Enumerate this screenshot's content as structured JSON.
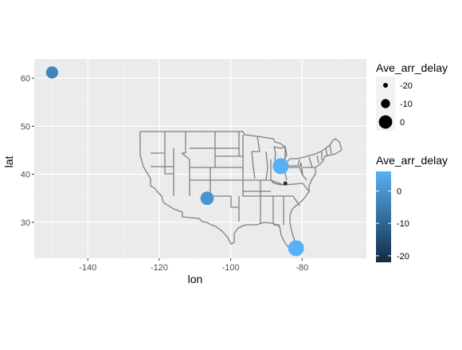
{
  "chart_data": {
    "type": "scatter",
    "xlabel": "lon",
    "ylabel": "lat",
    "xlim": [
      -155,
      -62
    ],
    "ylim": [
      22.5,
      64
    ],
    "x_ticks": [
      {
        "value": -140,
        "label": "-140"
      },
      {
        "value": -120,
        "label": "-120"
      },
      {
        "value": -100,
        "label": "-100"
      },
      {
        "value": -80,
        "label": "-80"
      }
    ],
    "y_ticks": [
      {
        "value": 30,
        "label": "30"
      },
      {
        "value": 40,
        "label": "40"
      },
      {
        "value": 50,
        "label": "50"
      },
      {
        "value": 60,
        "label": "60"
      }
    ],
    "grid": true,
    "background": "#EBEBEB",
    "basemap": "US state outlines (contiguous 48 states)",
    "points": [
      {
        "lon": -150.0,
        "lat": 61.2,
        "Ave_arr_delay": -3
      },
      {
        "lon": -106.6,
        "lat": 35.0,
        "Ave_arr_delay": 0
      },
      {
        "lon": -86.0,
        "lat": 41.7,
        "Ave_arr_delay": 6
      },
      {
        "lon": -84.7,
        "lat": 38.1,
        "Ave_arr_delay": -22
      },
      {
        "lon": -81.7,
        "lat": 24.6,
        "Ave_arr_delay": 6
      }
    ],
    "size_legend": {
      "title": "Ave_arr_delay",
      "items": [
        {
          "value": -20,
          "label": "-20"
        },
        {
          "value": -10,
          "label": "-10"
        },
        {
          "value": 0,
          "label": "0"
        }
      ]
    },
    "color_legend": {
      "title": "Ave_arr_delay",
      "range": [
        -22,
        6
      ],
      "low_color": "#132B43",
      "high_color": "#56B1F7",
      "ticks": [
        {
          "value": 0,
          "label": "0"
        },
        {
          "value": -10,
          "label": "-10"
        },
        {
          "value": -20,
          "label": "-20"
        }
      ]
    }
  }
}
